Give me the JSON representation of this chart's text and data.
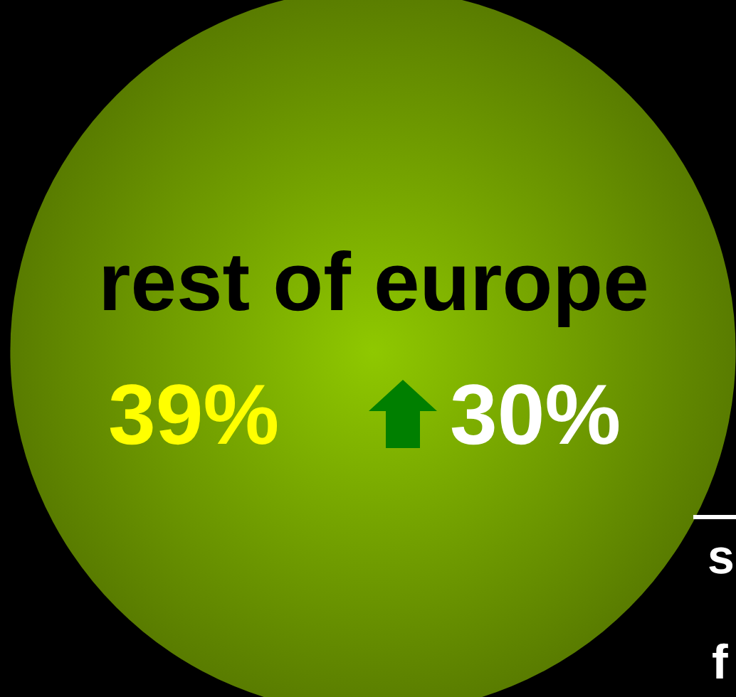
{
  "chart_data": {
    "type": "other",
    "categories": [
      "rest of europe"
    ],
    "values": [
      39
    ],
    "value_labels": [
      "39%"
    ],
    "colors": [
      "#8fc800"
    ],
    "annotations": [
      "30%",
      "s",
      "f"
    ]
  }
}
